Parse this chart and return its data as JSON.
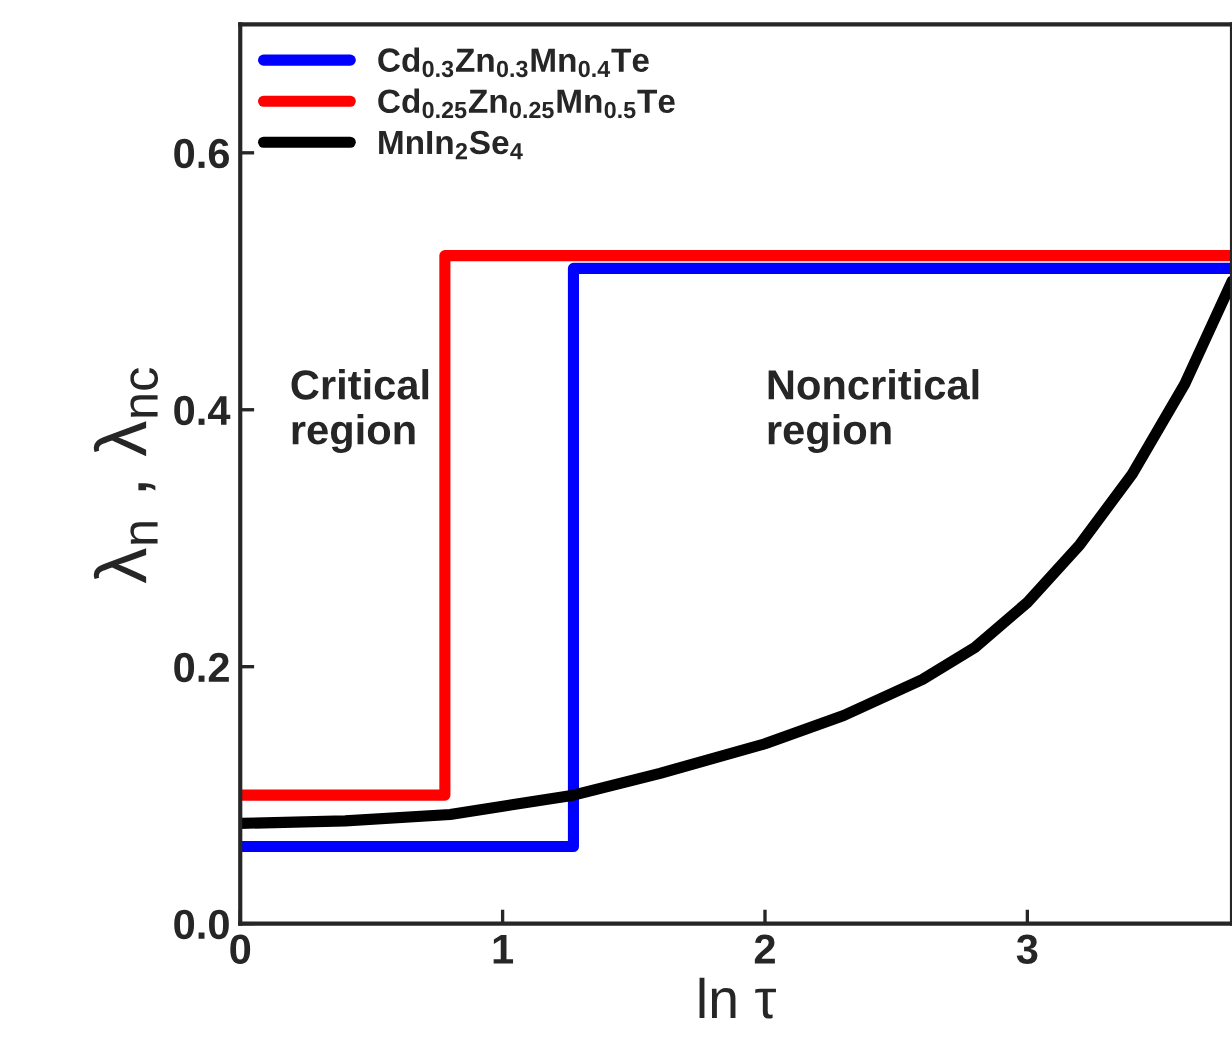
{
  "chart_data": {
    "type": "line",
    "xlabel": "ln τ",
    "ylabel": "λ$_{n}$ , λ$_{nc}$",
    "xlim": [
      0,
      3.78
    ],
    "ylim": [
      0,
      0.7
    ],
    "xticks": [
      0,
      1,
      2,
      3
    ],
    "yticks": [
      {
        "value": 0,
        "label": "0.0"
      },
      0.2,
      0.4,
      0.6
    ],
    "legend": "top left",
    "grid": false,
    "series": [
      {
        "name": "Cd$_{0.3}$Zn$_{0.3}$Mn$_{0.4}$Te",
        "type": "step",
        "color": "#0000ff",
        "x": [
          0,
          1.27,
          3.78
        ],
        "values": [
          0.06,
          0.51,
          0.51
        ]
      },
      {
        "name": "Cd$_{0.25}$Zn$_{0.25}$Mn$_{0.5}$Te",
        "type": "step",
        "color": "#ff0000",
        "x": [
          0,
          0.78,
          3.78
        ],
        "values": [
          0.1,
          0.52,
          0.52
        ]
      },
      {
        "name": "MnIn$_{2}$Se$_{4}$",
        "color": "#000000",
        "x": [
          0,
          0.4,
          0.8,
          1.27,
          1.6,
          2.0,
          2.3,
          2.6,
          2.8,
          3.0,
          3.2,
          3.4,
          3.6,
          3.78
        ],
        "values": [
          0.078,
          0.08,
          0.085,
          0.1,
          0.117,
          0.14,
          0.162,
          0.19,
          0.215,
          0.25,
          0.295,
          0.35,
          0.42,
          0.5
        ]
      }
    ],
    "annotations": [
      "Critical\nregion",
      "Noncritical\nregion"
    ]
  }
}
